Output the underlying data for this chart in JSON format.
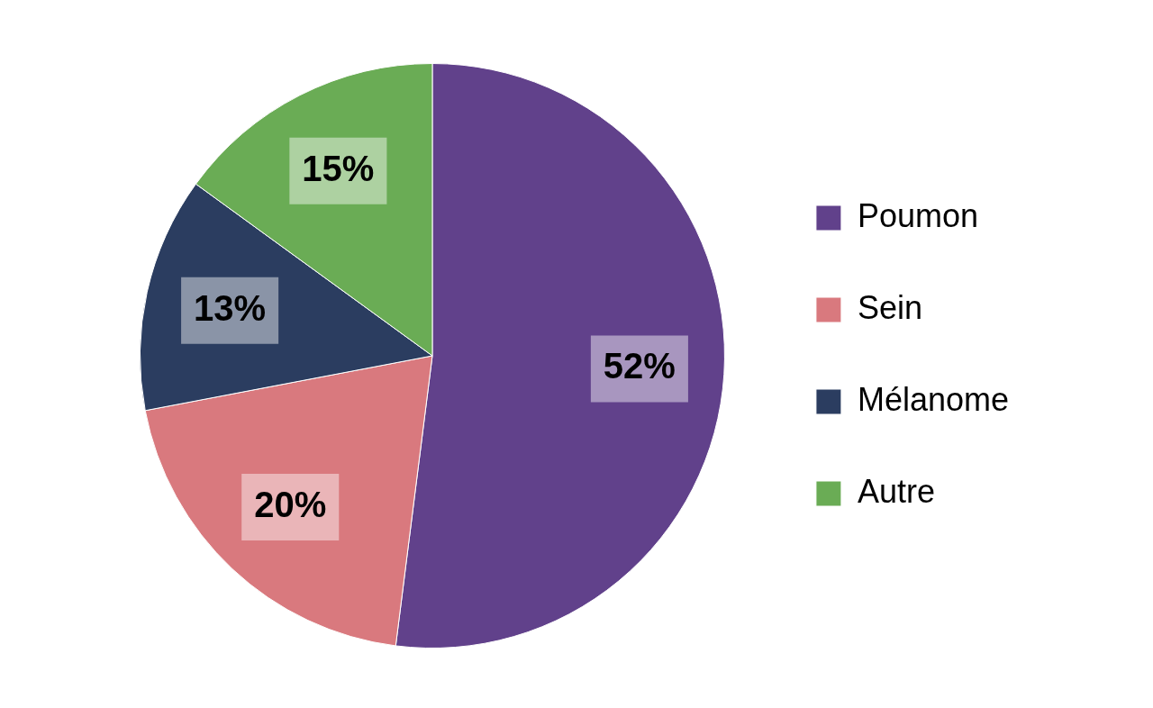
{
  "chart_data": {
    "type": "pie",
    "categories": [
      "Poumon",
      "Sein",
      "Mélanome",
      "Autre"
    ],
    "values": [
      52,
      20,
      13,
      15
    ],
    "colors": [
      "#61418b",
      "#d9797e",
      "#2b3d60",
      "#6aac55"
    ],
    "value_labels": [
      "52%",
      "20%",
      "13%",
      "15%"
    ],
    "legend": "right"
  }
}
